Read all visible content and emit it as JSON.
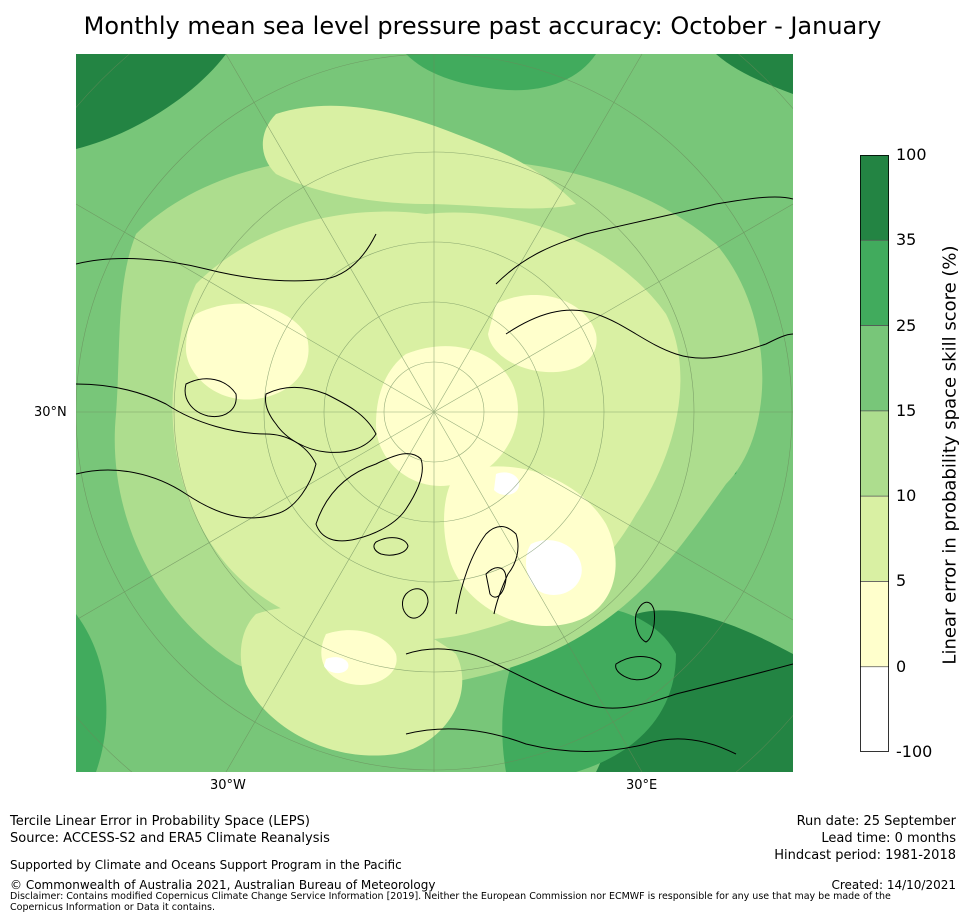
{
  "title": "Monthly mean sea level pressure past accuracy: October - January",
  "map": {
    "lat_label": "30°N",
    "lon_labels": {
      "west": "30°W",
      "east": "30°E"
    }
  },
  "colorbar": {
    "label": "Linear error in probability space skill score (%)",
    "ticks": [
      "100",
      "35",
      "25",
      "15",
      "10",
      "5",
      "0",
      "-100"
    ],
    "bins": [
      {
        "range": "35 to 100",
        "color": "#238443"
      },
      {
        "range": "25 to 35",
        "color": "#41ab5d"
      },
      {
        "range": "15 to 25",
        "color": "#78c679"
      },
      {
        "range": "10 to 15",
        "color": "#addd8e"
      },
      {
        "range": "5 to 10",
        "color": "#d9f0a3"
      },
      {
        "range": "0 to 5",
        "color": "#ffffcc"
      },
      {
        "range": "-100 to 0",
        "color": "#ffffff"
      }
    ]
  },
  "footer": {
    "method": "Tercile Linear Error in Probability Space (LEPS)",
    "source": "Source: ACCESS-S2 and ERA5 Climate Reanalysis",
    "support": "Supported by Climate and Oceans Support Program in the Pacific",
    "copyright": "© Commonwealth of Australia 2021, Australian Bureau of Meteorology",
    "disclaimer": "Disclaimer: Contains modified Copernicus Climate Change Service Information [2019]. Neither the European Commission nor ECMWF is responsible for any use that may be made of the Copernicus Information or Data it contains.",
    "run_date": "Run date: 25 September",
    "lead_time": "Lead time: 0 months",
    "hindcast": "Hindcast period: 1981-2018",
    "created": "Created: 14/10/2021"
  }
}
